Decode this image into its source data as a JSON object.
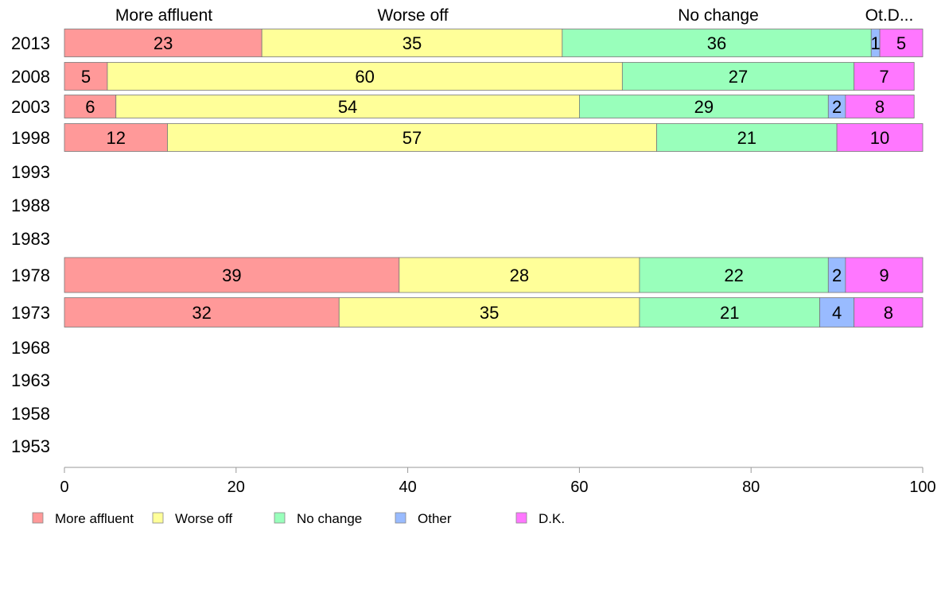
{
  "chart_data": {
    "type": "bar",
    "orientation": "horizontal",
    "stacked": true,
    "xlim": [
      0,
      100
    ],
    "x_ticks": [
      "0",
      "20",
      "40",
      "60",
      "80",
      "100"
    ],
    "categories": [
      "2013",
      "2008",
      "2003",
      "1998",
      "1993",
      "1988",
      "1983",
      "1978",
      "1973",
      "1968",
      "1963",
      "1958",
      "1953"
    ],
    "top_labels": [
      "More affluent",
      "Worse off",
      "No change",
      "Ot.D..."
    ],
    "legend_position": "bottom-left",
    "series": [
      {
        "name": "More affluent",
        "color": "#ff9999",
        "values": [
          23,
          5,
          6,
          12,
          null,
          null,
          null,
          39,
          32,
          null,
          null,
          null,
          null
        ]
      },
      {
        "name": "Worse off",
        "color": "#ffff99",
        "values": [
          35,
          60,
          54,
          57,
          null,
          null,
          null,
          28,
          35,
          null,
          null,
          null,
          null
        ]
      },
      {
        "name": "No change",
        "color": "#99ffbb",
        "values": [
          36,
          27,
          29,
          21,
          null,
          null,
          null,
          22,
          21,
          null,
          null,
          null,
          null
        ]
      },
      {
        "name": "Other",
        "color": "#99bbff",
        "values": [
          1,
          null,
          2,
          null,
          null,
          null,
          null,
          2,
          4,
          null,
          null,
          null,
          null
        ]
      },
      {
        "name": "D.K.",
        "color": "#ff77ff",
        "values": [
          5,
          7,
          8,
          10,
          null,
          null,
          null,
          9,
          8,
          null,
          null,
          null,
          null
        ]
      }
    ]
  }
}
